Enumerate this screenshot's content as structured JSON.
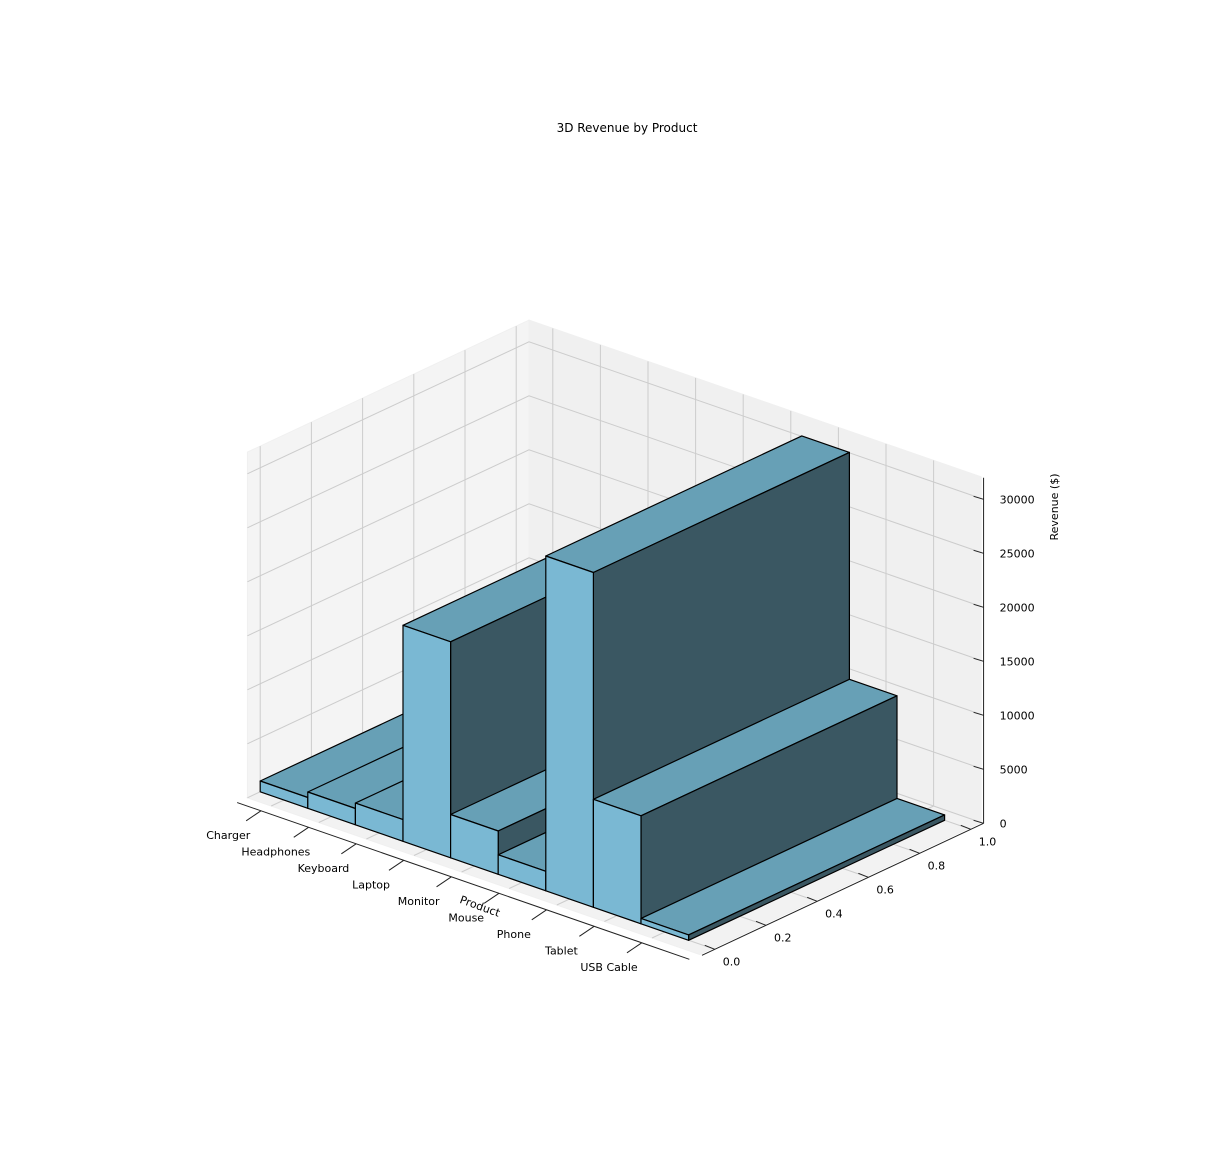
{
  "chart_data": {
    "type": "bar",
    "title": "3D Revenue by Product",
    "xlabel": "Product",
    "ylabel": "",
    "zlabel": "Revenue ($)",
    "categories": [
      "Charger",
      "Headphones",
      "Keyboard",
      "Laptop",
      "Monitor",
      "Mouse",
      "Phone",
      "Tablet",
      "USB Cable"
    ],
    "values": [
      1000,
      1500,
      2000,
      20000,
      4000,
      1800,
      31000,
      10000,
      500
    ],
    "y_ticks": [
      "0.0",
      "0.2",
      "0.4",
      "0.6",
      "0.8",
      "1.0"
    ],
    "z_ticks": [
      "0",
      "5000",
      "10000",
      "15000",
      "20000",
      "25000",
      "30000"
    ],
    "zlim": [
      0,
      32000
    ],
    "grid": true,
    "colors": {
      "bar_front": "#7ab8d3",
      "bar_top": "#67a0b6",
      "bar_side": "#3a5762",
      "bar_edge": "#000000"
    }
  }
}
